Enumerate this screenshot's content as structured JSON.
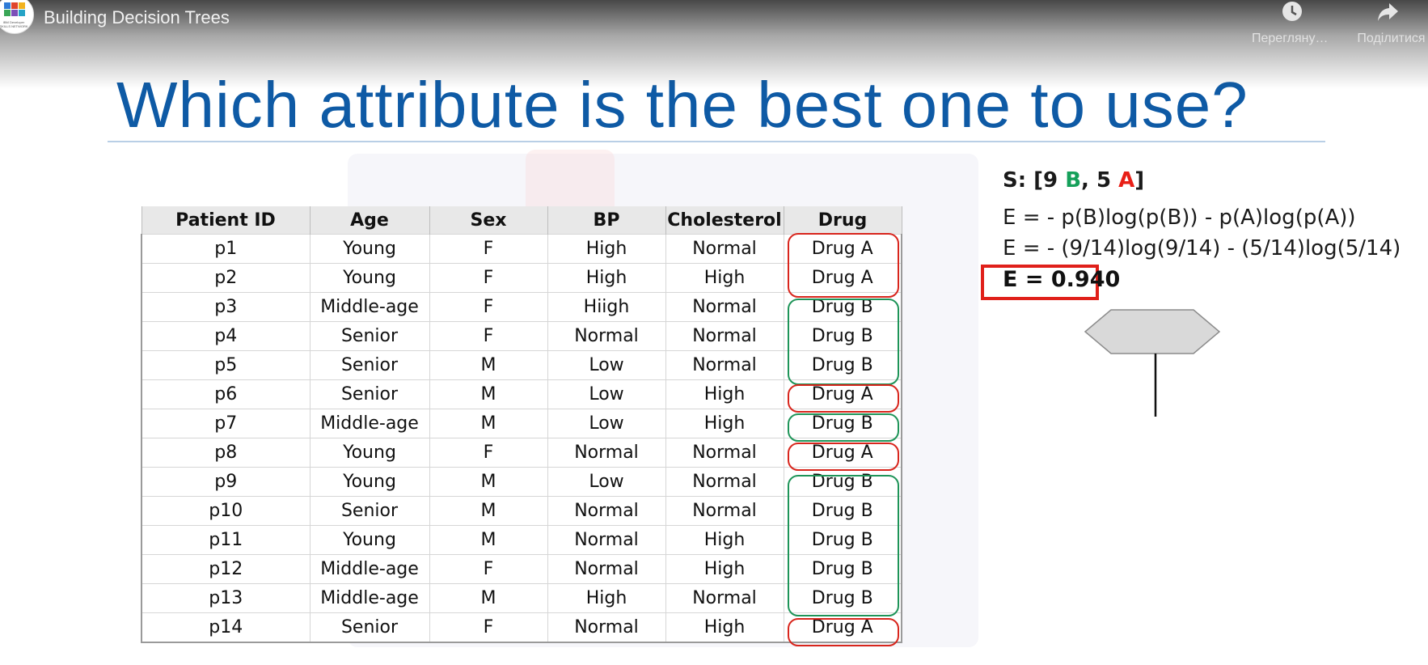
{
  "window": {
    "video_title": "Building Decision Trees",
    "watch_later_label": "Переглянути пізніше",
    "share_label": "Поділитися",
    "channel_logo_text": "IBM Developer SKILLS NETWORK"
  },
  "slide": {
    "title": "Which attribute is the best one to use?",
    "table": {
      "headers": [
        "Patient ID",
        "Age",
        "Sex",
        "BP",
        "Cholesterol",
        "Drug"
      ],
      "rows": [
        [
          "p1",
          "Young",
          "F",
          "High",
          "Normal",
          "Drug A"
        ],
        [
          "p2",
          "Young",
          "F",
          "High",
          "High",
          "Drug A"
        ],
        [
          "p3",
          "Middle-age",
          "F",
          "Hiigh",
          "Normal",
          "Drug B"
        ],
        [
          "p4",
          "Senior",
          "F",
          "Normal",
          "Normal",
          "Drug B"
        ],
        [
          "p5",
          "Senior",
          "M",
          "Low",
          "Normal",
          "Drug B"
        ],
        [
          "p6",
          "Senior",
          "M",
          "Low",
          "High",
          "Drug A"
        ],
        [
          "p7",
          "Middle-age",
          "M",
          "Low",
          "High",
          "Drug B"
        ],
        [
          "p8",
          "Young",
          "F",
          "Normal",
          "Normal",
          "Drug A"
        ],
        [
          "p9",
          "Young",
          "M",
          "Low",
          "Normal",
          "Drug B"
        ],
        [
          "p10",
          "Senior",
          "M",
          "Normal",
          "Normal",
          "Drug B"
        ],
        [
          "p11",
          "Young",
          "M",
          "Normal",
          "High",
          "Drug B"
        ],
        [
          "p12",
          "Middle-age",
          "F",
          "Normal",
          "High",
          "Drug B"
        ],
        [
          "p13",
          "Middle-age",
          "M",
          "High",
          "Normal",
          "Drug B"
        ],
        [
          "p14",
          "Senior",
          "F",
          "Normal",
          "High",
          "Drug A"
        ]
      ]
    },
    "set_summary": {
      "prefix": "S: [9 ",
      "b_label": "B",
      "middle": ", 5 ",
      "a_label": "A",
      "suffix": "]"
    },
    "entropy_formula": "E = - p(B)log(p(B)) - p(A)log(p(A))",
    "entropy_substituted": "E = - (9/14)log(9/14) - (5/14)log(5/14)",
    "entropy_result": "E = 0.940"
  },
  "colors": {
    "title_blue": "#0e5aa5",
    "drug_a_red": "#d8251c",
    "drug_b_green": "#1e9458",
    "result_box_red": "#e0201a",
    "node_gray": "#d9d9d9"
  }
}
